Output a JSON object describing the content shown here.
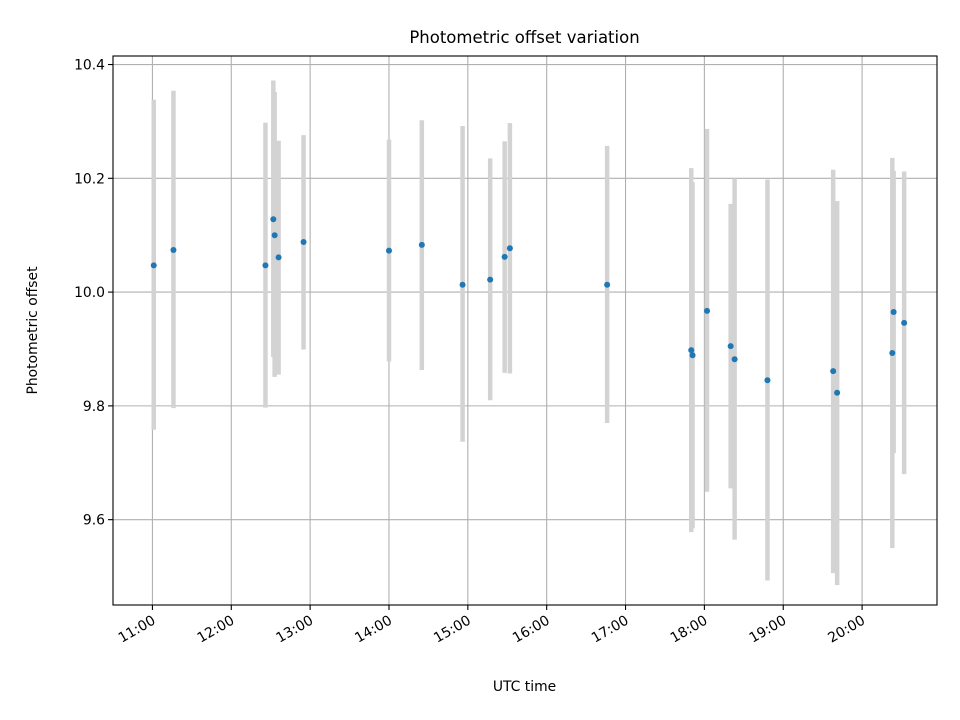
{
  "chart_data": {
    "type": "scatter",
    "title": "Photometric offset variation",
    "xlabel": "UTC time",
    "ylabel": "Photometric offset",
    "x_unit": "hours UTC",
    "xlim": [
      "10:30",
      "20:57"
    ],
    "ylim": [
      9.45,
      10.415
    ],
    "grid": true,
    "x_ticks": [
      "11:00",
      "12:00",
      "13:00",
      "14:00",
      "15:00",
      "16:00",
      "17:00",
      "18:00",
      "19:00",
      "20:00"
    ],
    "y_ticks": [
      "9.6",
      "9.8",
      "10.0",
      "10.2",
      "10.4"
    ],
    "colors": {
      "points": "#1f77b4",
      "errorbars": "#d3d3d3",
      "grid": "#b0b0b0"
    },
    "points": [
      {
        "x": "11:01",
        "y": 10.047,
        "low": 9.758,
        "high": 10.338
      },
      {
        "x": "11:16",
        "y": 10.074,
        "low": 9.796,
        "high": 10.354
      },
      {
        "x": "12:26",
        "y": 10.047,
        "low": 9.797,
        "high": 10.298
      },
      {
        "x": "12:32",
        "y": 10.128,
        "low": 9.886,
        "high": 10.372
      },
      {
        "x": "12:33",
        "y": 10.1,
        "low": 9.851,
        "high": 10.352
      },
      {
        "x": "12:36",
        "y": 10.061,
        "low": 9.855,
        "high": 10.266
      },
      {
        "x": "12:55",
        "y": 10.088,
        "low": 9.899,
        "high": 10.276
      },
      {
        "x": "14:00",
        "y": 10.073,
        "low": 9.878,
        "high": 10.268
      },
      {
        "x": "14:25",
        "y": 10.083,
        "low": 9.863,
        "high": 10.302
      },
      {
        "x": "14:56",
        "y": 10.013,
        "low": 9.737,
        "high": 10.292
      },
      {
        "x": "15:17",
        "y": 10.022,
        "low": 9.81,
        "high": 10.235
      },
      {
        "x": "15:28",
        "y": 10.062,
        "low": 9.858,
        "high": 10.265
      },
      {
        "x": "15:32",
        "y": 10.077,
        "low": 9.857,
        "high": 10.297
      },
      {
        "x": "16:46",
        "y": 10.013,
        "low": 9.77,
        "high": 10.257
      },
      {
        "x": "17:50",
        "y": 9.898,
        "low": 9.578,
        "high": 10.218
      },
      {
        "x": "17:51",
        "y": 9.889,
        "low": 9.585,
        "high": 10.193
      },
      {
        "x": "18:02",
        "y": 9.967,
        "low": 9.649,
        "high": 10.287
      },
      {
        "x": "18:20",
        "y": 9.905,
        "low": 9.655,
        "high": 10.155
      },
      {
        "x": "18:23",
        "y": 9.882,
        "low": 9.565,
        "high": 10.2
      },
      {
        "x": "18:48",
        "y": 9.845,
        "low": 9.493,
        "high": 10.198
      },
      {
        "x": "19:38",
        "y": 9.861,
        "low": 9.506,
        "high": 10.215
      },
      {
        "x": "19:41",
        "y": 9.823,
        "low": 9.485,
        "high": 10.16
      },
      {
        "x": "20:23",
        "y": 9.893,
        "low": 9.55,
        "high": 10.236
      },
      {
        "x": "20:24",
        "y": 9.965,
        "low": 9.717,
        "high": 10.213
      },
      {
        "x": "20:32",
        "y": 9.946,
        "low": 9.68,
        "high": 10.212
      }
    ]
  }
}
